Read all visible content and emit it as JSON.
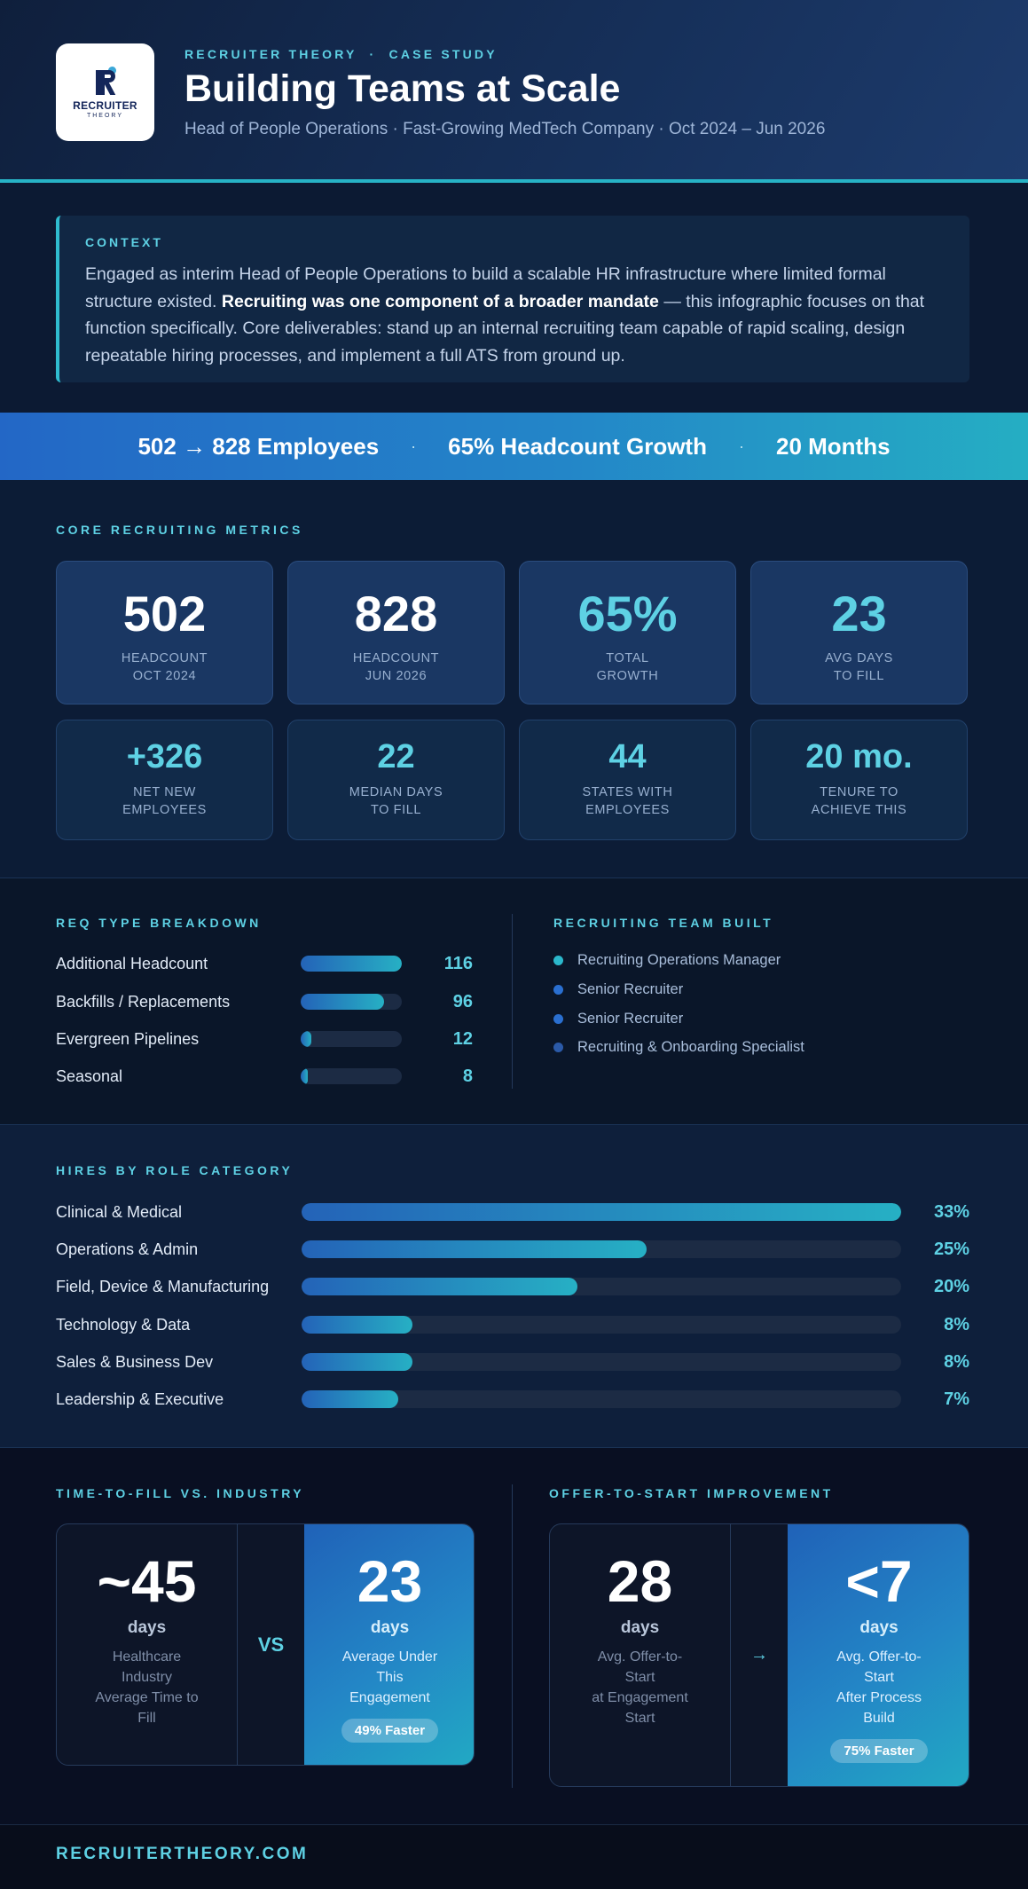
{
  "header": {
    "logo_text": "RECRUITER",
    "logo_sub": "THEORY",
    "eyebrow": "RECRUITER THEORY  ·  CASE STUDY",
    "title": "Building Teams at Scale",
    "subtitle": "Head of People Operations  ·  Fast-Growing MedTech Company  ·  Oct 2024 – Jun 2026"
  },
  "context": {
    "label": "CONTEXT",
    "text_before": "Engaged as interim Head of People Operations to build a scalable HR infrastructure where limited formal structure existed. ",
    "text_bold": "Recruiting was one component of a broader mandate",
    "text_after": " — this infographic focuses on that function specifically. Core deliverables: stand up an internal recruiting team capable of rapid scaling, design repeatable hiring processes, and implement a full ATS from ground up."
  },
  "banner": {
    "stat1": "502 → 828 Employees",
    "stat2": "65% Headcount Growth",
    "stat3": "20 Months",
    "separator": "·"
  },
  "metrics": {
    "label": "CORE RECRUITING METRICS",
    "big": [
      {
        "value": "502",
        "label1": "HEADCOUNT",
        "label2": "OCT 2024"
      },
      {
        "value": "828",
        "label1": "HEADCOUNT",
        "label2": "JUN 2026"
      },
      {
        "value": "65%",
        "label1": "TOTAL",
        "label2": "GROWTH"
      },
      {
        "value": "23",
        "label1": "AVG DAYS",
        "label2": "TO FILL"
      }
    ],
    "small": [
      {
        "value": "+326",
        "label1": "NET NEW",
        "label2": "EMPLOYEES"
      },
      {
        "value": "22",
        "label1": "MEDIAN DAYS",
        "label2": "TO FILL"
      },
      {
        "value": "44",
        "label1": "STATES WITH",
        "label2": "EMPLOYEES"
      },
      {
        "value": "20 mo.",
        "label1": "TENURE TO",
        "label2": "ACHIEVE THIS"
      }
    ]
  },
  "req": {
    "label": "REQ TYPE BREAKDOWN",
    "max": 116,
    "rows": [
      {
        "name": "Additional Headcount",
        "value": 116,
        "display": "116"
      },
      {
        "name": "Backfills / Replacements",
        "value": 96,
        "display": "96"
      },
      {
        "name": "Evergreen Pipelines",
        "value": 12,
        "display": "12"
      },
      {
        "name": "Seasonal",
        "value": 8,
        "display": "8"
      }
    ]
  },
  "team": {
    "label": "RECRUITING TEAM BUILT",
    "items": [
      {
        "name": "Recruiting Operations Manager",
        "color": "#2bb8cc"
      },
      {
        "name": "Senior Recruiter",
        "color": "#2a6fd0"
      },
      {
        "name": "Senior Recruiter",
        "color": "#2a6fd0"
      },
      {
        "name": "Recruiting & Onboarding Specialist",
        "color": "#2b5aa8"
      }
    ]
  },
  "hires": {
    "label": "HIRES BY ROLE CATEGORY",
    "max": 33,
    "rows": [
      {
        "name": "Clinical & Medical",
        "value": 33,
        "display": "33%"
      },
      {
        "name": "Operations & Admin",
        "value": 25,
        "display": "25%"
      },
      {
        "name": "Field, Device & Manufacturing",
        "value": 20,
        "display": "20%"
      },
      {
        "name": "Technology & Data",
        "value": 8,
        "display": "8%"
      },
      {
        "name": "Sales & Business Dev",
        "value": 8,
        "display": "8%"
      },
      {
        "name": "Leadership & Executive",
        "value": 7,
        "display": "7%"
      }
    ]
  },
  "ttf": {
    "label": "TIME-TO-FILL VS. INDUSTRY",
    "left_value": "~45",
    "left_unit": "days",
    "left_desc": [
      "Healthcare",
      "Industry",
      "Average Time to",
      "Fill"
    ],
    "mid": "VS",
    "right_value": "23",
    "right_unit": "days",
    "right_desc": [
      "Average Under",
      "This",
      "Engagement"
    ],
    "pill": "49% Faster"
  },
  "ots": {
    "label": "OFFER-TO-START IMPROVEMENT",
    "left_value": "28",
    "left_unit": "days",
    "left_desc": [
      "Avg. Offer-to-",
      "Start",
      "at Engagement",
      "Start"
    ],
    "mid": "→",
    "right_value": "<7",
    "right_unit": "days",
    "right_desc": [
      "Avg. Offer-to-",
      "Start",
      "After Process",
      "Build"
    ],
    "pill": "75% Faster"
  },
  "footer": {
    "text": "RECRUITERTHEORY.COM"
  }
}
